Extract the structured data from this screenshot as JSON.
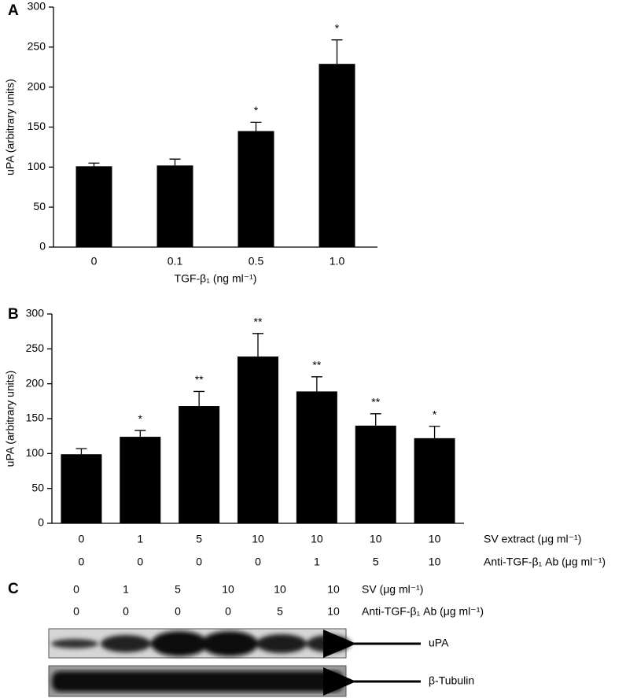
{
  "chart_data": [
    {
      "type": "bar",
      "panel": "A",
      "ylabel": "uPA (arbitrary units)",
      "xlabel": "TGF-β₁ (ng ml⁻¹)",
      "categories": [
        "0",
        "0.1",
        "0.5",
        "1.0"
      ],
      "values": [
        101,
        102,
        145,
        229
      ],
      "errors": [
        4,
        8,
        11,
        30
      ],
      "annotations": [
        null,
        null,
        "*",
        "*"
      ],
      "color": "#000000",
      "ylim": [
        0,
        300
      ],
      "yticks": [
        0,
        50,
        100,
        150,
        200,
        250,
        300
      ]
    },
    {
      "type": "bar",
      "panel": "B",
      "ylabel": "uPA (arbitrary units)",
      "categories": [
        "0",
        "1",
        "5",
        "10",
        "10",
        "10",
        "10"
      ],
      "category_rows": [
        {
          "label": "SV extract (μg ml⁻¹)",
          "values": [
            "0",
            "1",
            "5",
            "10",
            "10",
            "10",
            "10"
          ]
        },
        {
          "label": "Anti-TGF-β₁ Ab (μg ml⁻¹)",
          "values": [
            "0",
            "0",
            "0",
            "0",
            "1",
            "5",
            "10"
          ]
        }
      ],
      "values": [
        99,
        124,
        168,
        239,
        189,
        140,
        122
      ],
      "errors": [
        8,
        9,
        21,
        33,
        21,
        17,
        17
      ],
      "annotations": [
        null,
        "*",
        "**",
        "**",
        "**",
        "**",
        "*"
      ],
      "color": "#000000",
      "ylim": [
        0,
        300
      ],
      "yticks": [
        0,
        50,
        100,
        150,
        200,
        250,
        300
      ]
    }
  ],
  "blot": {
    "panel": "C",
    "rows": [
      {
        "label": "SV (μg ml⁻¹)",
        "values": [
          "0",
          "1",
          "5",
          "10",
          "10",
          "10"
        ]
      },
      {
        "label": "Anti-TGF-β₁ Ab (μg ml⁻¹)",
        "values": [
          "0",
          "0",
          "0",
          "0",
          "5",
          "10"
        ]
      }
    ],
    "bands": [
      "uPA",
      "β-Tubulin"
    ]
  }
}
